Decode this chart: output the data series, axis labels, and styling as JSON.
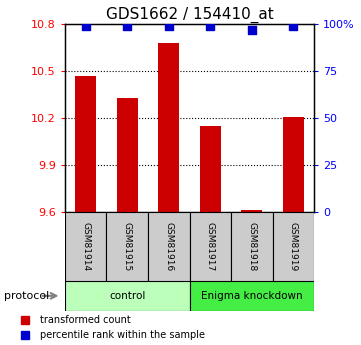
{
  "title": "GDS1662 / 154410_at",
  "samples": [
    "GSM81914",
    "GSM81915",
    "GSM81916",
    "GSM81917",
    "GSM81918",
    "GSM81919"
  ],
  "bar_values": [
    10.47,
    10.33,
    10.68,
    10.15,
    9.615,
    10.21
  ],
  "bar_base": 9.6,
  "percentile_values": [
    99,
    99,
    99,
    99,
    97,
    99
  ],
  "ylim": [
    9.6,
    10.8
  ],
  "right_ylim": [
    0,
    100
  ],
  "right_yticks": [
    0,
    25,
    50,
    75,
    100
  ],
  "right_yticklabels": [
    "0",
    "25",
    "50",
    "75",
    "100%"
  ],
  "left_yticks": [
    9.6,
    9.9,
    10.2,
    10.5,
    10.8
  ],
  "left_yticklabels": [
    "9.6",
    "9.9",
    "10.2",
    "10.5",
    "10.8"
  ],
  "bar_color": "#cc0000",
  "dot_color": "#0000cc",
  "dotted_line_y": [
    9.9,
    10.2,
    10.5
  ],
  "protocol_groups": [
    {
      "label": "control",
      "start": 0,
      "end": 3,
      "color": "#bbffbb"
    },
    {
      "label": "Enigma knockdown",
      "start": 3,
      "end": 6,
      "color": "#44ee44"
    }
  ],
  "protocol_label": "protocol",
  "legend_items": [
    {
      "label": "transformed count",
      "color": "#cc0000"
    },
    {
      "label": "percentile rank within the sample",
      "color": "#0000cc"
    }
  ],
  "sample_box_color": "#cccccc",
  "bar_width": 0.5,
  "dot_size": 35
}
